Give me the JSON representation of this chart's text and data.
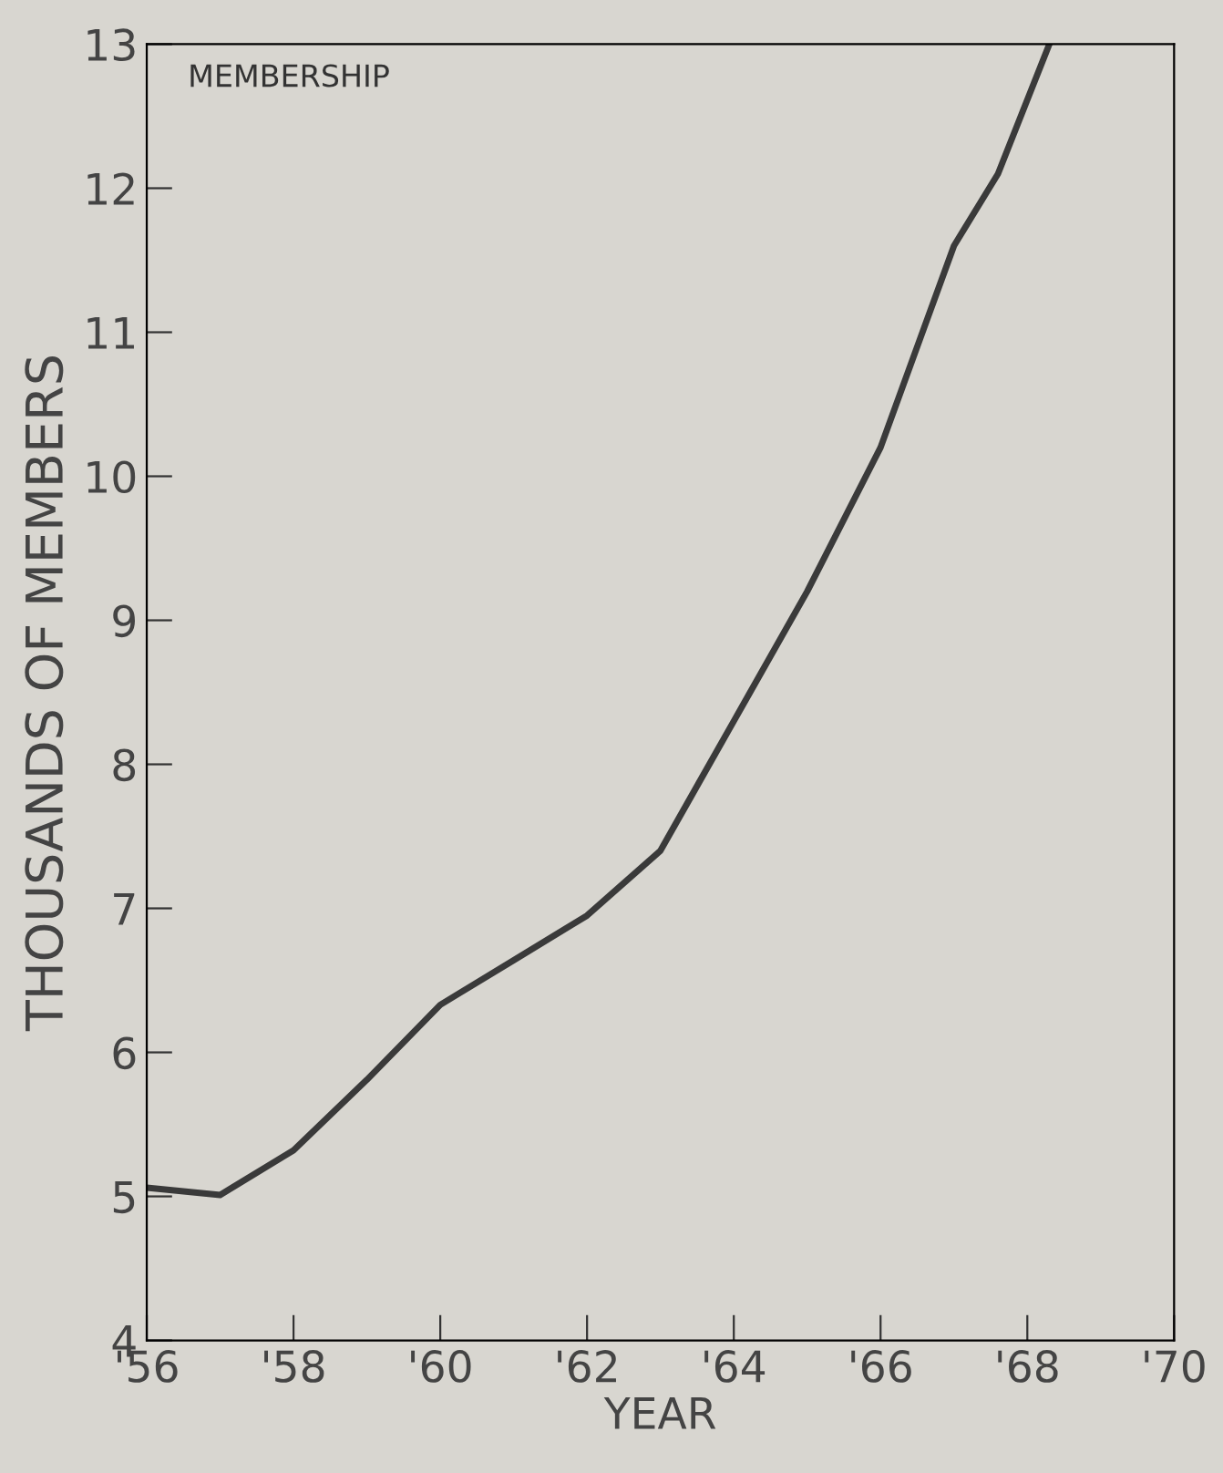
{
  "chart_data": {
    "type": "line",
    "title": "MEMBERSHIP",
    "xlabel": "YEAR",
    "ylabel": "THOUSANDS OF MEMBERS",
    "x": [
      1956,
      1957,
      1958,
      1959,
      1960,
      1961,
      1962,
      1963,
      1964,
      1965,
      1966,
      1967,
      1967.6,
      1968.3
    ],
    "series": [
      {
        "color": "#3a3a3a",
        "values": [
          5.06,
          5.01,
          5.32,
          5.81,
          6.33,
          6.64,
          6.95,
          7.4,
          8.3,
          9.2,
          10.2,
          11.6,
          12.1,
          13.0
        ]
      }
    ],
    "xlim": [
      1956,
      1970
    ],
    "ylim": [
      4,
      13
    ],
    "xticks": [
      {
        "value": 1956,
        "label": "'56"
      },
      {
        "value": 1958,
        "label": "'58"
      },
      {
        "value": 1960,
        "label": "'60"
      },
      {
        "value": 1962,
        "label": "'62"
      },
      {
        "value": 1964,
        "label": "'64"
      },
      {
        "value": 1966,
        "label": "'66"
      },
      {
        "value": 1968,
        "label": "'68"
      },
      {
        "value": 1970,
        "label": "'70"
      }
    ],
    "yticks": [
      4,
      5,
      6,
      7,
      8,
      9,
      10,
      11,
      12,
      13
    ],
    "grid": false,
    "legend": false
  }
}
